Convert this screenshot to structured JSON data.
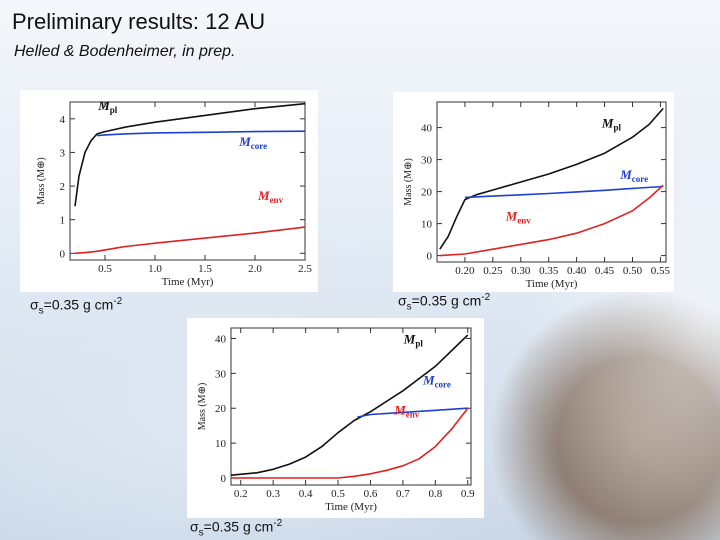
{
  "header": {
    "title": "Preliminary results: 12 AU",
    "subtitle": "Helled & Bodenheimer, in prep."
  },
  "captions": [
    {
      "sym": "σ",
      "sub": "s",
      "val": "=0.35 g cm",
      "sup": "-2"
    },
    {
      "sym": "σ",
      "sub": "s",
      "val": "=0.35 g cm",
      "sup": "-2"
    },
    {
      "sym": "σ",
      "sub": "s",
      "val": "=0.35 g cm",
      "sup": "-2"
    }
  ],
  "chart_data": [
    {
      "type": "line",
      "xlabel": "Time (Myr)",
      "ylabel": "Mass (M⊕)",
      "xlim": [
        0.15,
        2.5
      ],
      "ylim": [
        -0.2,
        4.5
      ],
      "xticks": [
        0.5,
        1.0,
        1.5,
        2.0,
        2.5
      ],
      "xtick_labels": [
        "0.5",
        "1.0",
        "1.5",
        "2.0",
        "2.5"
      ],
      "yticks": [
        0,
        1,
        2,
        3,
        4
      ],
      "ytick_labels": [
        "0",
        "1",
        "2",
        "3",
        "4"
      ],
      "series": [
        {
          "name": "Mpl",
          "name_main": "M",
          "name_sub": "pl",
          "color": "#111111",
          "x": [
            0.2,
            0.24,
            0.3,
            0.36,
            0.42,
            0.5,
            0.7,
            1.0,
            1.5,
            2.0,
            2.5
          ],
          "y": [
            1.4,
            2.3,
            3.0,
            3.35,
            3.55,
            3.62,
            3.75,
            3.9,
            4.1,
            4.3,
            4.45
          ]
        },
        {
          "name": "Mcore",
          "name_main": "M",
          "name_sub": "core",
          "color": "#1f3fcc",
          "x": [
            0.42,
            0.5,
            0.7,
            1.0,
            1.5,
            2.0,
            2.5
          ],
          "y": [
            3.5,
            3.52,
            3.55,
            3.58,
            3.6,
            3.62,
            3.63
          ]
        },
        {
          "name": "Menv",
          "name_main": "M",
          "name_sub": "env",
          "color": "#dd2222",
          "x": [
            0.2,
            0.3,
            0.4,
            0.5,
            0.7,
            1.0,
            1.5,
            2.0,
            2.5
          ],
          "y": [
            0.0,
            0.02,
            0.05,
            0.1,
            0.2,
            0.3,
            0.45,
            0.6,
            0.78
          ]
        }
      ]
    },
    {
      "type": "line",
      "xlabel": "Time (Myr)",
      "ylabel": "Mass (M⊕)",
      "xlim": [
        0.15,
        0.56
      ],
      "ylim": [
        -2,
        48
      ],
      "xticks": [
        0.2,
        0.25,
        0.3,
        0.35,
        0.4,
        0.45,
        0.5,
        0.55
      ],
      "xtick_labels": [
        "0.20",
        "0.25",
        "0.30",
        "0.35",
        "0.40",
        "0.45",
        "0.50",
        "0.55"
      ],
      "yticks": [
        0,
        10,
        20,
        30,
        40
      ],
      "ytick_labels": [
        "0",
        "10",
        "20",
        "30",
        "40"
      ],
      "series": [
        {
          "name": "Mpl",
          "name_main": "M",
          "name_sub": "pl",
          "color": "#111111",
          "x": [
            0.155,
            0.17,
            0.185,
            0.2,
            0.22,
            0.25,
            0.3,
            0.35,
            0.4,
            0.45,
            0.5,
            0.53,
            0.555
          ],
          "y": [
            2,
            6,
            12,
            17.5,
            19,
            20.5,
            23,
            25.5,
            28.5,
            32,
            37,
            41,
            46
          ]
        },
        {
          "name": "Mcore",
          "name_main": "M",
          "name_sub": "core",
          "color": "#1f3fcc",
          "x": [
            0.2,
            0.25,
            0.3,
            0.35,
            0.4,
            0.45,
            0.5,
            0.555
          ],
          "y": [
            18.2,
            18.6,
            19.0,
            19.4,
            19.9,
            20.4,
            21.0,
            21.6
          ]
        },
        {
          "name": "Menv",
          "name_main": "M",
          "name_sub": "env",
          "color": "#dd2222",
          "x": [
            0.155,
            0.2,
            0.25,
            0.3,
            0.35,
            0.4,
            0.45,
            0.5,
            0.53,
            0.555
          ],
          "y": [
            0,
            0.5,
            2,
            3.5,
            5,
            7,
            10,
            14,
            18,
            22
          ]
        }
      ]
    },
    {
      "type": "line",
      "xlabel": "Time (Myr)",
      "ylabel": "Mass (M⊕)",
      "xlim": [
        0.17,
        0.91
      ],
      "ylim": [
        -2,
        43
      ],
      "xticks": [
        0.2,
        0.3,
        0.4,
        0.5,
        0.6,
        0.7,
        0.8,
        0.9
      ],
      "xtick_labels": [
        "0.2",
        "0.3",
        "0.4",
        "0.5",
        "0.6",
        "0.7",
        "0.8",
        "0.9"
      ],
      "yticks": [
        0,
        10,
        20,
        30,
        40
      ],
      "ytick_labels": [
        "0",
        "10",
        "20",
        "30",
        "40"
      ],
      "series": [
        {
          "name": "Mpl",
          "name_main": "M",
          "name_sub": "pl",
          "color": "#111111",
          "x": [
            0.17,
            0.25,
            0.3,
            0.35,
            0.4,
            0.45,
            0.5,
            0.55,
            0.6,
            0.7,
            0.8,
            0.9
          ],
          "y": [
            0.8,
            1.5,
            2.5,
            4,
            6,
            9,
            13,
            16.5,
            19,
            25,
            32,
            41
          ]
        },
        {
          "name": "Mcore",
          "name_main": "M",
          "name_sub": "core",
          "color": "#1f3fcc",
          "x": [
            0.56,
            0.6,
            0.7,
            0.8,
            0.9
          ],
          "y": [
            17.5,
            18.2,
            18.8,
            19.4,
            20.0
          ]
        },
        {
          "name": "Menv",
          "name_main": "M",
          "name_sub": "env",
          "color": "#dd2222",
          "x": [
            0.17,
            0.5,
            0.55,
            0.6,
            0.65,
            0.7,
            0.75,
            0.8,
            0.85,
            0.9
          ],
          "y": [
            0,
            0,
            0.5,
            1.2,
            2.2,
            3.5,
            5.5,
            9,
            14,
            20
          ]
        }
      ]
    }
  ]
}
